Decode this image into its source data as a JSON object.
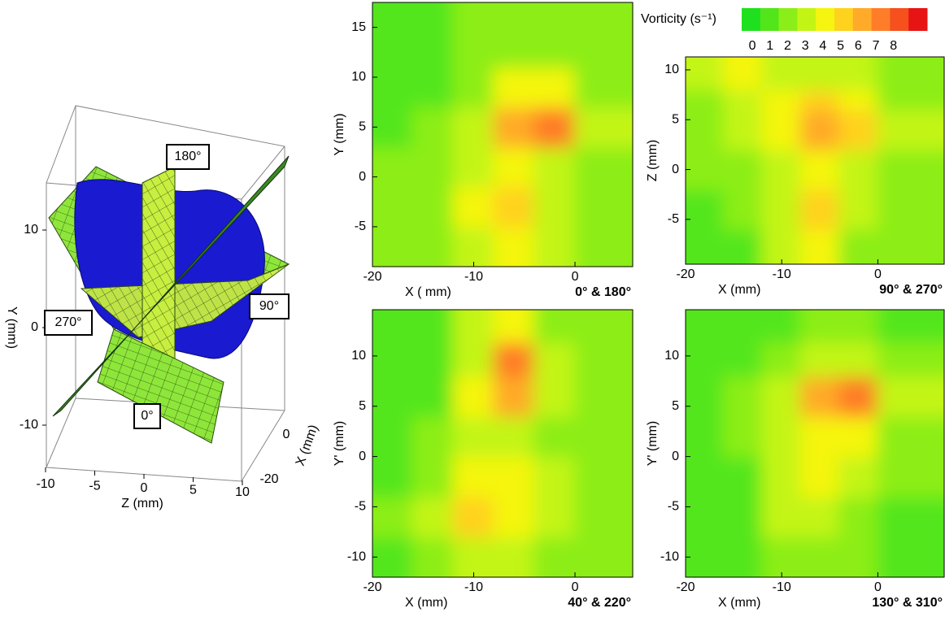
{
  "chart_data": [
    {
      "type": "iso3d",
      "ylabel": "Y (mm)",
      "zlabel": "Z (mm)",
      "xlabel": "X (mm)",
      "yticks": [
        10,
        0,
        -10
      ],
      "zticks": [
        -10,
        -5,
        0,
        5,
        10
      ],
      "xticks": [
        0,
        -20
      ],
      "annotations": [
        "180°",
        "90°",
        "270°",
        "0°"
      ]
    },
    {
      "type": "colorbar",
      "title": "Vorticity (s⁻¹)",
      "clim": [
        -0.6,
        9.9
      ],
      "cticks": [
        0,
        1,
        2,
        3,
        4,
        5,
        6,
        7,
        8
      ],
      "colors": [
        "#1ee01e",
        "#52e61a",
        "#8cee18",
        "#c3f514",
        "#f5f50f",
        "#ffd21e",
        "#ffaa28",
        "#ff7d28",
        "#f5501e",
        "#e61414"
      ]
    },
    {
      "type": "contour",
      "xlabel": "X ( mm)",
      "ylabel": "Y (mm)",
      "tag": "0° & 180°",
      "xlim": [
        -20,
        5.7
      ],
      "ylim": [
        -9,
        17.5
      ],
      "xticks": [
        -20,
        -10,
        0
      ],
      "yticks": [
        -5,
        0,
        5,
        10,
        15
      ],
      "x": [
        -18,
        -14,
        -10,
        -6,
        -2,
        2
      ],
      "y": [
        -7,
        -3,
        1,
        5,
        9,
        13,
        17
      ],
      "z": [
        [
          1.5,
          2,
          3,
          4.5,
          3,
          2
        ],
        [
          1.5,
          2.5,
          4,
          5.5,
          3.5,
          2
        ],
        [
          1.5,
          2,
          3,
          4,
          3.5,
          2.5
        ],
        [
          1,
          1.5,
          3,
          6,
          7,
          3
        ],
        [
          1,
          1,
          2.5,
          4.5,
          4,
          2.5
        ],
        [
          1,
          1,
          1.5,
          2.5,
          2.5,
          2
        ],
        [
          1,
          1,
          1.5,
          2,
          2,
          1.5
        ]
      ]
    },
    {
      "type": "contour",
      "xlabel": "X (mm)",
      "ylabel": "Z (mm)",
      "tag": "90° & 270°",
      "xlim": [
        -20,
        6.9
      ],
      "ylim": [
        -9.5,
        11.3
      ],
      "xticks": [
        -20,
        -10,
        0
      ],
      "yticks": [
        -5,
        0,
        5,
        10
      ],
      "x": [
        -18,
        -14,
        -10,
        -6,
        -2,
        2
      ],
      "y": [
        -8,
        -4,
        0,
        4,
        8,
        11
      ],
      "z": [
        [
          1,
          1,
          3,
          4.5,
          2.5,
          2
        ],
        [
          1,
          1.5,
          3,
          5,
          3,
          2
        ],
        [
          1.5,
          2.5,
          3.5,
          4,
          3.5,
          2.5
        ],
        [
          2,
          3,
          4,
          6,
          5,
          3
        ],
        [
          2.5,
          3,
          4,
          5,
          4,
          2.5
        ],
        [
          3,
          4,
          3.5,
          3.5,
          3,
          2.5
        ]
      ]
    },
    {
      "type": "contour",
      "xlabel": "X (mm)",
      "ylabel": "Y' (mm)",
      "tag": "40° & 220°",
      "xlim": [
        -20,
        5.7
      ],
      "ylim": [
        -12,
        14.6
      ],
      "xticks": [
        -20,
        -10,
        0
      ],
      "yticks": [
        -10,
        -5,
        0,
        5,
        10
      ],
      "x": [
        -18,
        -14,
        -10,
        -6,
        -2,
        2
      ],
      "y": [
        -10,
        -6,
        -2,
        2,
        6,
        10,
        14
      ],
      "z": [
        [
          1,
          2,
          3.5,
          3.5,
          2.5,
          2
        ],
        [
          1.5,
          3,
          5,
          4.5,
          3,
          2
        ],
        [
          1,
          2.5,
          4,
          4,
          3,
          2
        ],
        [
          1,
          1.5,
          3,
          3.5,
          2.5,
          2
        ],
        [
          1,
          1,
          4,
          6.5,
          3.5,
          2
        ],
        [
          1,
          1,
          3.5,
          7,
          3,
          1.5
        ],
        [
          1,
          1,
          3,
          4.5,
          2,
          1.5
        ]
      ]
    },
    {
      "type": "contour",
      "xlabel": "X (mm)",
      "ylabel": "Y' (mm)",
      "tag": "130° & 310°",
      "xlim": [
        -20,
        6.9
      ],
      "ylim": [
        -12,
        14.6
      ],
      "xticks": [
        -20,
        -10,
        0
      ],
      "yticks": [
        -10,
        -5,
        0,
        5,
        10
      ],
      "x": [
        -18,
        -14,
        -10,
        -6,
        -2,
        2
      ],
      "y": [
        -10,
        -6,
        -2,
        2,
        6,
        10,
        14
      ],
      "z": [
        [
          1,
          1,
          1.5,
          2,
          1.5,
          1
        ],
        [
          1,
          1,
          3,
          3.5,
          2,
          1
        ],
        [
          1,
          1,
          3.5,
          4.5,
          3,
          1.5
        ],
        [
          1,
          1.5,
          3,
          4,
          4,
          2
        ],
        [
          1,
          1.5,
          3,
          6,
          7,
          3
        ],
        [
          1,
          1,
          2,
          3.5,
          3,
          1.5
        ],
        [
          1,
          1,
          1,
          1.5,
          1.5,
          1
        ]
      ]
    }
  ]
}
